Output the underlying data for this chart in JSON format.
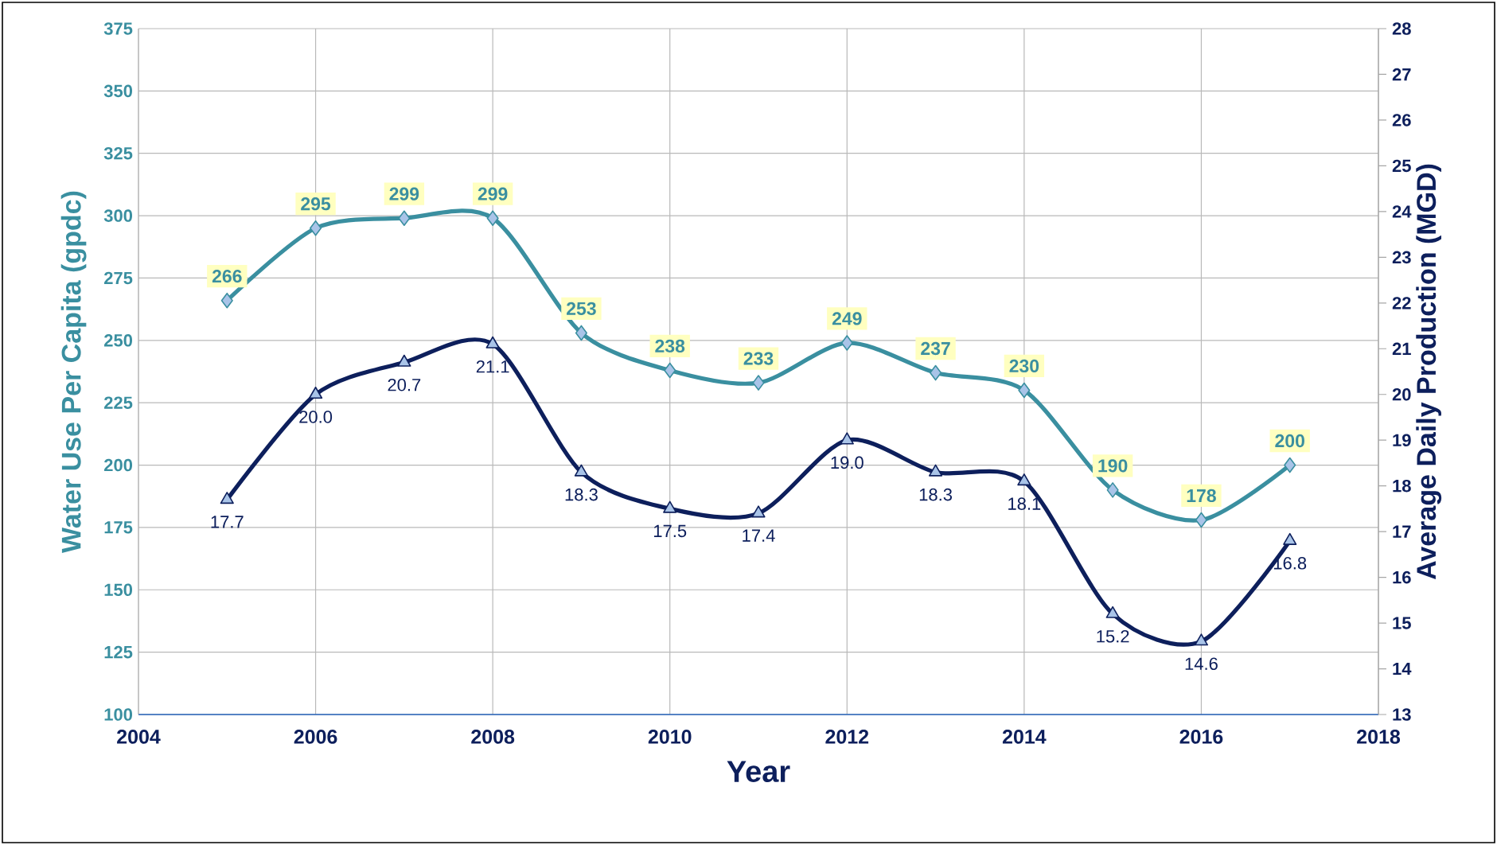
{
  "chart_data": {
    "type": "line",
    "xlabel": "Year",
    "ylabel": "Water Use Per Capita (gpdc)",
    "y2label": "Average Daily Production (MGD)",
    "x": [
      2005,
      2006,
      2007,
      2008,
      2009,
      2010,
      2011,
      2012,
      2013,
      2014,
      2015,
      2016,
      2017
    ],
    "series": [
      {
        "color": "#3a8fa0",
        "marker": "diamond",
        "values": [
          266,
          295,
          299,
          299,
          253,
          238,
          233,
          249,
          237,
          230,
          190,
          178,
          200
        ],
        "value_labels": [
          "266",
          "295",
          "299",
          "299",
          "253",
          "238",
          "233",
          "249",
          "237",
          "230",
          "190",
          "178",
          "200"
        ]
      },
      {
        "color": "#0d1f5c",
        "marker": "triangle",
        "axis": "y2",
        "values": [
          17.7,
          20.0,
          20.7,
          21.1,
          18.3,
          17.5,
          17.4,
          19.0,
          18.3,
          18.1,
          15.2,
          14.6,
          16.8
        ],
        "value_labels": [
          "17.7",
          "20.0",
          "20.7",
          "21.1",
          "18.3",
          "17.5",
          "17.4",
          "19.0",
          "18.3",
          "18.1",
          "15.2",
          "14.6",
          "16.8"
        ]
      }
    ],
    "xlim": [
      2004,
      2018
    ],
    "xticks": [
      2004,
      2006,
      2008,
      2010,
      2012,
      2014,
      2016,
      2018
    ],
    "ylim": [
      100,
      375
    ],
    "yticks": [
      100,
      125,
      150,
      175,
      200,
      225,
      250,
      275,
      300,
      325,
      350,
      375
    ],
    "y2lim": [
      13,
      28
    ],
    "y2ticks": [
      13,
      14,
      15,
      16,
      17,
      18,
      19,
      20,
      21,
      22,
      23,
      24,
      25,
      26,
      27,
      28
    ],
    "grid": true,
    "line_style": "solid"
  }
}
